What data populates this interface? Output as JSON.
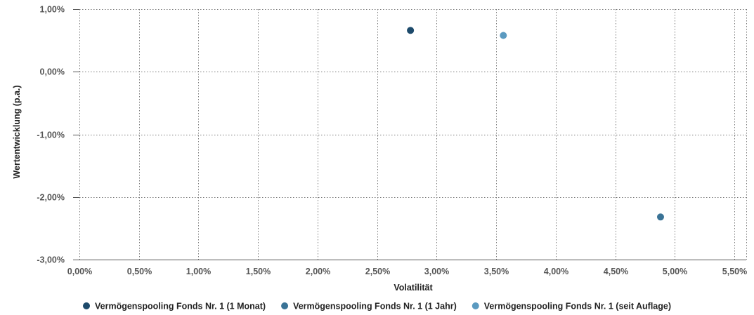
{
  "chart_data": {
    "type": "scatter",
    "xlabel": "Volatilität",
    "ylabel": "Wertentwicklung (p.a.)",
    "xlim": [
      0,
      5.6
    ],
    "ylim": [
      -3,
      1
    ],
    "x_ticks": [
      0,
      0.5,
      1,
      1.5,
      2,
      2.5,
      3,
      3.5,
      4,
      4.5,
      5,
      5.5
    ],
    "y_ticks": [
      1,
      0,
      -1,
      -2,
      -3
    ],
    "x_tick_labels": [
      "0,00%",
      "0,50%",
      "1,00%",
      "1,50%",
      "2,00%",
      "2,50%",
      "3,00%",
      "3,50%",
      "4,00%",
      "4,50%",
      "5,00%",
      "5,50%"
    ],
    "y_tick_labels": [
      "1,00%",
      "0,00%",
      "-1,00%",
      "-2,00%",
      "-3,00%"
    ],
    "grid": true,
    "legend_position": "bottom",
    "series": [
      {
        "name": "Vermögenspooling Fonds Nr. 1 (1 Monat)",
        "color": "#1d4a6b",
        "points": [
          {
            "x": 2.78,
            "y": 0.66
          }
        ]
      },
      {
        "name": "Vermögenspooling Fonds Nr. 1 (1 Jahr)",
        "color": "#3a7396",
        "points": [
          {
            "x": 4.88,
            "y": -2.32
          }
        ]
      },
      {
        "name": "Vermögenspooling Fonds Nr. 1 (seit Auflage)",
        "color": "#5b9ac0",
        "points": [
          {
            "x": 3.56,
            "y": 0.58
          }
        ]
      }
    ]
  }
}
